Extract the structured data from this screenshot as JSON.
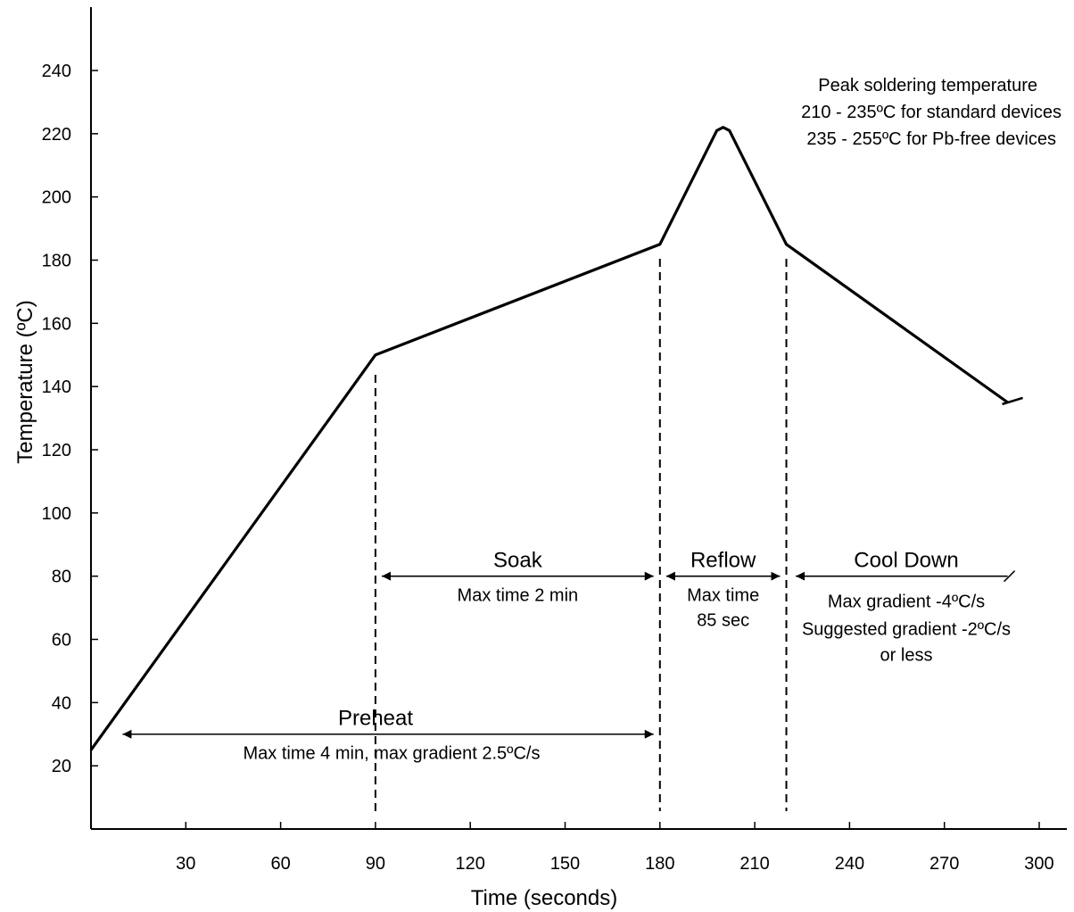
{
  "chart_data": {
    "type": "line",
    "title": "",
    "xlabel": "Time (seconds)",
    "ylabel": "Temperature (ºC)",
    "xlim": [
      0,
      310
    ],
    "ylim": [
      0,
      260
    ],
    "x_ticks": [
      30,
      60,
      90,
      120,
      150,
      180,
      210,
      240,
      270,
      300
    ],
    "y_ticks": [
      20,
      40,
      60,
      80,
      100,
      120,
      140,
      160,
      180,
      200,
      220,
      240
    ],
    "grid": false,
    "series": [
      {
        "x": [
          0,
          90,
          180,
          198,
          200,
          202,
          220,
          290
        ],
        "y": [
          25,
          150,
          185,
          221,
          222,
          221,
          185,
          135
        ]
      }
    ],
    "phase_boundaries": [
      90,
      180,
      220
    ],
    "annotations": {
      "peak": [
        "Peak soldering temperature",
        "210 - 235ºC for standard devices",
        "235 - 255ºC for Pb-free devices"
      ],
      "soak": {
        "label": "Soak",
        "note": "Max time 2 min",
        "x_range": [
          92,
          178
        ],
        "y": 80
      },
      "reflow": {
        "label": "Reflow",
        "note": [
          "Max time",
          "85 sec"
        ],
        "x_range": [
          182,
          218
        ],
        "y": 80
      },
      "cool_down": {
        "label": "Cool Down",
        "note": [
          "Max gradient -4ºC/s",
          "Suggested gradient -2ºC/s",
          "or less"
        ],
        "x_range": [
          223,
          290
        ],
        "y": 80
      },
      "preheat": {
        "label": "Preheat",
        "note": "Max time 4 min, max gradient 2.5ºC/s",
        "x_range": [
          10,
          178
        ],
        "y": 30
      }
    }
  }
}
